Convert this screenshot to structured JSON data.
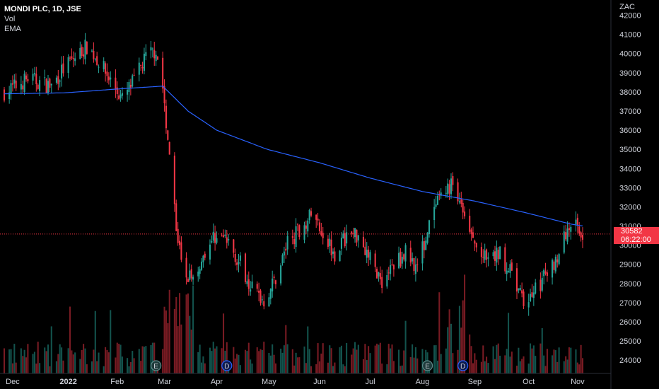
{
  "legend": {
    "symbol": "MONDI PLC, 1D, JSE",
    "volume": "Vol",
    "ema": "EMA"
  },
  "currency": "ZAC",
  "last_price": "30582",
  "countdown": "06:22:00",
  "colors": {
    "up": "#26a69a",
    "down": "#f23645",
    "ema": "#2962ff",
    "background": "#000000",
    "text": "#d1d4dc"
  },
  "chart_data": {
    "type": "candlestick",
    "yaxis": {
      "ticks": [
        "42000",
        "41000",
        "40000",
        "39000",
        "38000",
        "37000",
        "36000",
        "35000",
        "34000",
        "33000",
        "32000",
        "31000",
        "30000",
        "29000",
        "28000",
        "27000",
        "26000",
        "25000",
        "24000"
      ],
      "ylim": [
        23600,
        42500
      ],
      "side": "right"
    },
    "xaxis": {
      "ticks": [
        "Dec",
        "2022",
        "Feb",
        "Mar",
        "Apr",
        "May",
        "Jun",
        "Jul",
        "Aug",
        "Sep",
        "Oct",
        "Nov"
      ],
      "range": [
        "2021-11-26",
        "2022-11-04"
      ]
    },
    "grid": false,
    "legend_placement": "top-left",
    "last_price": 30582,
    "events": [
      {
        "label": "E",
        "date": "2022-02-24"
      },
      {
        "label": "D",
        "date": "2022-04-07"
      },
      {
        "label": "E",
        "date": "2022-08-04"
      },
      {
        "label": "D",
        "date": "2022-08-25"
      }
    ],
    "price_anchors": [
      [
        "2021-11-26",
        38000
      ],
      [
        "2021-12-03",
        38300
      ],
      [
        "2021-12-10",
        38700
      ],
      [
        "2021-12-17",
        38500
      ],
      [
        "2021-12-24",
        38300
      ],
      [
        "2021-12-31",
        39200
      ],
      [
        "2022-01-07",
        39800
      ],
      [
        "2022-01-14",
        40400
      ],
      [
        "2022-01-21",
        39600
      ],
      [
        "2022-01-28",
        38600
      ],
      [
        "2022-02-04",
        37600
      ],
      [
        "2022-02-11",
        38600
      ],
      [
        "2022-02-18",
        39800
      ],
      [
        "2022-02-24",
        40200
      ],
      [
        "2022-02-28",
        38200
      ],
      [
        "2022-03-03",
        35500
      ],
      [
        "2022-03-08",
        31000
      ],
      [
        "2022-03-11",
        29000
      ],
      [
        "2022-03-18",
        28100
      ],
      [
        "2022-03-25",
        29700
      ],
      [
        "2022-04-01",
        30600
      ],
      [
        "2022-04-08",
        30100
      ],
      [
        "2022-04-14",
        29200
      ],
      [
        "2022-04-22",
        27800
      ],
      [
        "2022-04-29",
        27100
      ],
      [
        "2022-05-06",
        28300
      ],
      [
        "2022-05-13",
        30100
      ],
      [
        "2022-05-20",
        30800
      ],
      [
        "2022-05-27",
        31600
      ],
      [
        "2022-06-03",
        30700
      ],
      [
        "2022-06-10",
        29600
      ],
      [
        "2022-06-17",
        30500
      ],
      [
        "2022-06-24",
        30600
      ],
      [
        "2022-07-01",
        29300
      ],
      [
        "2022-07-08",
        28100
      ],
      [
        "2022-07-15",
        29000
      ],
      [
        "2022-07-22",
        29600
      ],
      [
        "2022-07-29",
        28900
      ],
      [
        "2022-08-05",
        31000
      ],
      [
        "2022-08-12",
        32600
      ],
      [
        "2022-08-19",
        33200
      ],
      [
        "2022-08-26",
        31200
      ],
      [
        "2022-09-02",
        29800
      ],
      [
        "2022-09-09",
        29100
      ],
      [
        "2022-09-16",
        29600
      ],
      [
        "2022-09-23",
        28400
      ],
      [
        "2022-09-30",
        27000
      ],
      [
        "2022-10-07",
        27700
      ],
      [
        "2022-10-14",
        28500
      ],
      [
        "2022-10-21",
        29600
      ],
      [
        "2022-10-28",
        31300
      ],
      [
        "2022-11-04",
        30582
      ]
    ],
    "ema_anchors": [
      [
        "2021-11-26",
        37900
      ],
      [
        "2022-01-01",
        37950
      ],
      [
        "2022-02-01",
        38150
      ],
      [
        "2022-02-28",
        38300
      ],
      [
        "2022-03-15",
        37000
      ],
      [
        "2022-04-01",
        36000
      ],
      [
        "2022-05-01",
        35000
      ],
      [
        "2022-06-01",
        34300
      ],
      [
        "2022-07-01",
        33500
      ],
      [
        "2022-08-01",
        32800
      ],
      [
        "2022-09-01",
        32300
      ],
      [
        "2022-10-01",
        31700
      ],
      [
        "2022-10-28",
        31100
      ],
      [
        "2022-11-04",
        31000
      ]
    ]
  }
}
